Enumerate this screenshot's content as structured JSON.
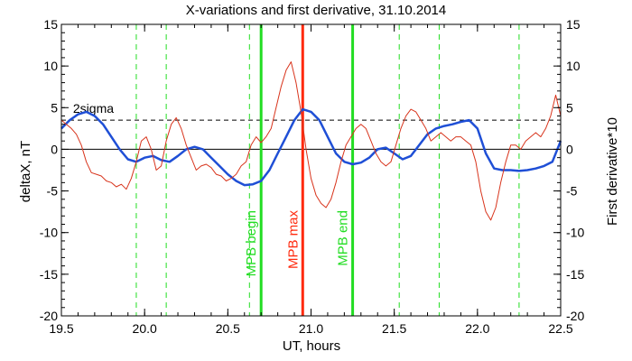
{
  "chart_data": {
    "type": "line",
    "title": "X-variations and first derivative, 31.10.2014",
    "xlabel": "UT, hours",
    "ylabel_left": "deltaX, nT",
    "ylabel_right": "First derivative*10",
    "xlim": [
      19.5,
      22.5
    ],
    "ylim_left": [
      -20,
      15
    ],
    "ylim_right": [
      -20,
      15
    ],
    "x_ticks": [
      19.5,
      20.0,
      20.5,
      21.0,
      21.5,
      22.0,
      22.5
    ],
    "x_tick_labels": [
      "19.5",
      "20.0",
      "20.5",
      "21.0",
      "21.5",
      "22.0",
      "22.5"
    ],
    "y_ticks": [
      -20,
      -15,
      -10,
      -5,
      0,
      5,
      10,
      15
    ],
    "y_tick_labels": [
      "-20",
      "-15",
      "-10",
      "-5",
      "0",
      "5",
      "10",
      "15"
    ],
    "sigma_line": {
      "label": "2sigma",
      "y": 3.5
    },
    "colors": {
      "deltaX": "#1f4fd6",
      "derivative": "#d8341c",
      "mpb": "#22dd22",
      "mpb_max": "#ff2a0e"
    },
    "vertical_markers": [
      {
        "x": 20.7,
        "label": "MPB begin",
        "color": "#22dd22"
      },
      {
        "x": 20.95,
        "label": "MPB max",
        "color": "#ff2a0e"
      },
      {
        "x": 21.25,
        "label": "MPB end",
        "color": "#22dd22"
      }
    ],
    "dashed_verticals": [
      19.95,
      20.13,
      20.63,
      21.53,
      21.77,
      22.25
    ],
    "series": [
      {
        "key": "deltaX",
        "axis": "left",
        "x": [
          19.5,
          19.55,
          19.6,
          19.65,
          19.7,
          19.75,
          19.8,
          19.85,
          19.9,
          19.95,
          20.0,
          20.05,
          20.1,
          20.15,
          20.2,
          20.25,
          20.3,
          20.35,
          20.4,
          20.45,
          20.5,
          20.55,
          20.6,
          20.65,
          20.7,
          20.75,
          20.8,
          20.85,
          20.9,
          20.95,
          21.0,
          21.05,
          21.1,
          21.15,
          21.2,
          21.25,
          21.3,
          21.35,
          21.4,
          21.45,
          21.5,
          21.55,
          21.6,
          21.65,
          21.7,
          21.75,
          21.8,
          21.85,
          21.9,
          21.95,
          22.0,
          22.05,
          22.1,
          22.15,
          22.2,
          22.25,
          22.3,
          22.35,
          22.4,
          22.45,
          22.5
        ],
        "values": [
          2.5,
          3.5,
          4.2,
          4.5,
          4.0,
          3.0,
          1.5,
          0.0,
          -1.2,
          -1.5,
          -1.0,
          -0.8,
          -1.3,
          -1.5,
          -0.8,
          0.0,
          0.3,
          0.0,
          -1.0,
          -2.0,
          -3.0,
          -3.8,
          -4.3,
          -4.2,
          -3.8,
          -2.5,
          -0.5,
          1.5,
          3.5,
          4.8,
          4.5,
          3.5,
          1.5,
          -0.5,
          -1.5,
          -1.8,
          -1.6,
          -1.0,
          0.0,
          0.2,
          -0.5,
          -1.2,
          -0.8,
          0.5,
          1.8,
          2.5,
          2.8,
          3.0,
          3.3,
          3.5,
          2.5,
          -0.5,
          -2.3,
          -2.5,
          -2.5,
          -2.6,
          -2.5,
          -2.3,
          -2.0,
          -1.5,
          1.0
        ]
      },
      {
        "key": "derivative",
        "axis": "right",
        "x": [
          19.5,
          19.53,
          19.56,
          19.59,
          19.62,
          19.65,
          19.68,
          19.71,
          19.74,
          19.77,
          19.8,
          19.83,
          19.86,
          19.89,
          19.92,
          19.95,
          19.98,
          20.01,
          20.04,
          20.07,
          20.1,
          20.13,
          20.16,
          20.19,
          20.22,
          20.25,
          20.28,
          20.31,
          20.34,
          20.37,
          20.4,
          20.43,
          20.46,
          20.49,
          20.52,
          20.55,
          20.58,
          20.61,
          20.64,
          20.67,
          20.7,
          20.73,
          20.76,
          20.79,
          20.82,
          20.85,
          20.88,
          20.91,
          20.94,
          20.97,
          21.0,
          21.03,
          21.06,
          21.09,
          21.12,
          21.15,
          21.18,
          21.21,
          21.24,
          21.27,
          21.3,
          21.33,
          21.36,
          21.39,
          21.42,
          21.45,
          21.48,
          21.51,
          21.54,
          21.57,
          21.6,
          21.63,
          21.66,
          21.69,
          21.72,
          21.75,
          21.78,
          21.81,
          21.84,
          21.87,
          21.9,
          21.93,
          21.96,
          21.99,
          22.02,
          22.05,
          22.08,
          22.11,
          22.14,
          22.17,
          22.2,
          22.23,
          22.26,
          22.29,
          22.32,
          22.35,
          22.38,
          22.41,
          22.44,
          22.47,
          22.5
        ],
        "values": [
          3.5,
          3.0,
          2.5,
          1.8,
          0.5,
          -1.5,
          -2.8,
          -3.0,
          -3.2,
          -3.8,
          -4.0,
          -4.5,
          -4.2,
          -4.8,
          -3.5,
          -1.5,
          1.0,
          1.5,
          0.0,
          -2.5,
          -2.0,
          1.0,
          3.0,
          3.8,
          2.5,
          0.5,
          -1.0,
          -2.5,
          -2.0,
          -1.8,
          -2.2,
          -3.0,
          -3.2,
          -3.8,
          -3.5,
          -3.0,
          -2.0,
          -1.5,
          0.5,
          1.5,
          0.8,
          1.5,
          2.5,
          5.0,
          7.5,
          9.5,
          10.5,
          8.0,
          4.5,
          0.0,
          -3.5,
          -5.5,
          -6.5,
          -7.0,
          -6.0,
          -4.0,
          -1.5,
          0.5,
          1.5,
          2.5,
          3.0,
          2.5,
          1.0,
          -0.5,
          -1.5,
          -2.0,
          -1.5,
          0.5,
          2.5,
          4.0,
          4.8,
          4.5,
          3.5,
          2.5,
          1.0,
          1.5,
          2.0,
          1.5,
          1.0,
          1.5,
          1.5,
          1.0,
          0.5,
          -1.5,
          -5.0,
          -7.5,
          -8.5,
          -7.0,
          -4.0,
          -1.5,
          0.5,
          0.5,
          0.0,
          1.0,
          1.5,
          2.0,
          1.5,
          2.5,
          4.0,
          6.5,
          4.0
        ]
      }
    ]
  }
}
